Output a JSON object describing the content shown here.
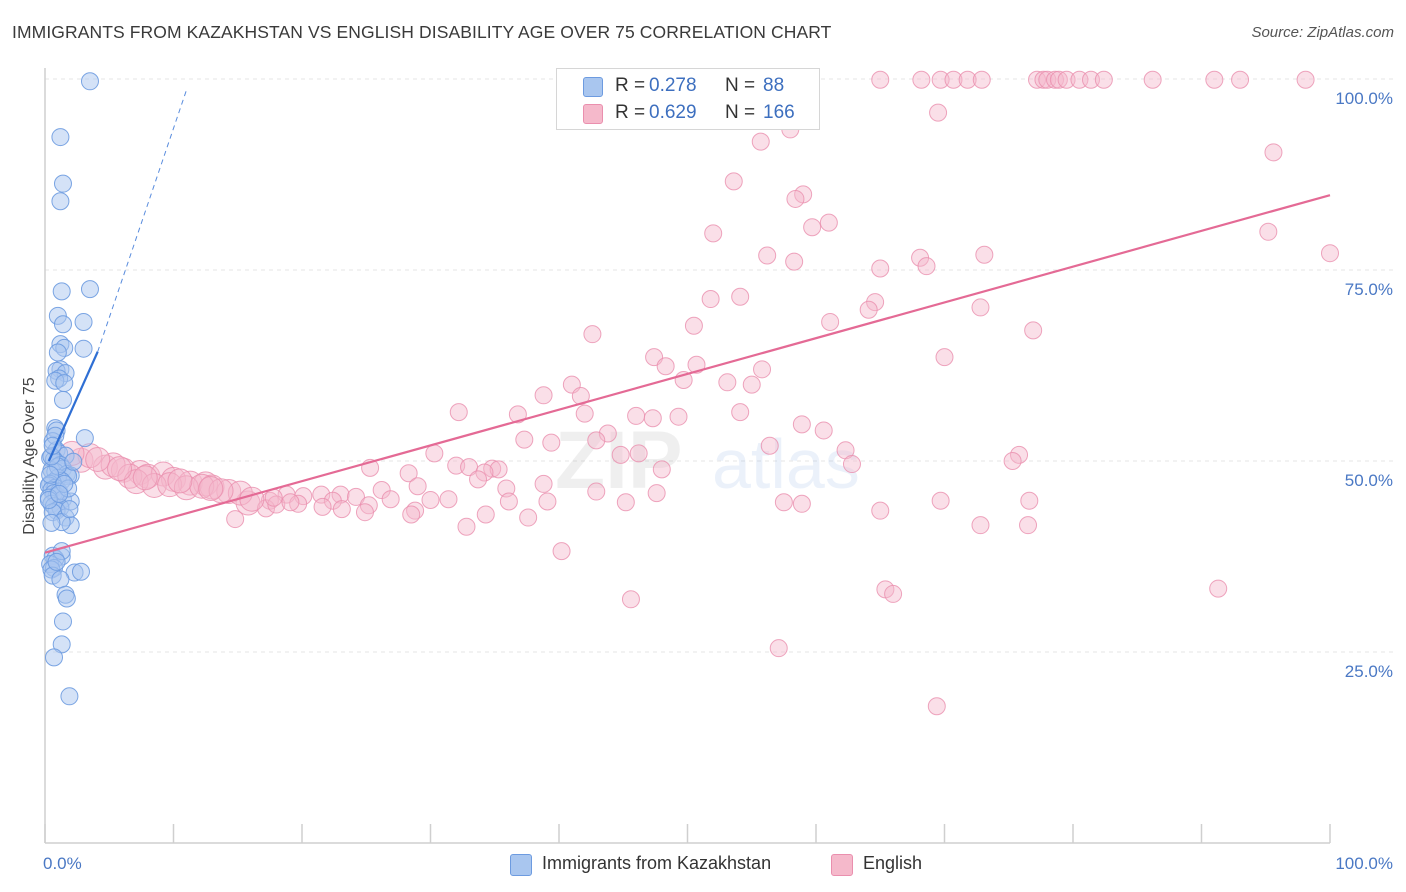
{
  "header": {
    "title": "IMMIGRANTS FROM KAZAKHSTAN VS ENGLISH DISABILITY AGE OVER 75 CORRELATION CHART",
    "source": "Source: ZipAtlas.com"
  },
  "watermark": {
    "text_zip": "ZIP",
    "text_atlas": "atlas"
  },
  "legend_top": {
    "rows": [
      {
        "r_label": "R =",
        "r_value": "0.278",
        "n_label": "N =",
        "n_value": "88"
      },
      {
        "r_label": "R =",
        "r_value": "0.629",
        "n_label": "N =",
        "n_value": "166"
      }
    ]
  },
  "legend_bottom": {
    "items": [
      {
        "label": "Immigrants from Kazakhstan"
      },
      {
        "label": "English"
      }
    ]
  },
  "colors": {
    "blue_fill": "#a9c6ef",
    "blue_stroke": "#6d9be0",
    "blue_line": "#2f6fd4",
    "pink_fill": "#f5b9cb",
    "pink_stroke": "#ea8fae",
    "pink_line": "#e46a95",
    "grid": "#e6e6e6",
    "axis_text": "#4a78c4"
  },
  "chart_data": {
    "type": "scatter",
    "title": "IMMIGRANTS FROM KAZAKHSTAN VS ENGLISH DISABILITY AGE OVER 75 CORRELATION CHART",
    "xlabel": "",
    "ylabel": "Disability Age Over 75",
    "xlim": [
      0,
      100
    ],
    "ylim": [
      0,
      100
    ],
    "x_ticks": [
      "0.0%",
      "100.0%"
    ],
    "y_ticks": [
      "25.0%",
      "50.0%",
      "75.0%",
      "100.0%"
    ],
    "y_tick_values": [
      25,
      50,
      75,
      100
    ],
    "grid": true,
    "legend_position": "top-center",
    "series": [
      {
        "name": "Immigrants from Kazakhstan",
        "r": 0.278,
        "n": 88,
        "trend": {
          "x": [
            0.3,
            4.1
          ],
          "y": [
            50.0,
            64.3
          ]
        },
        "trend_extension": {
          "x": [
            4.1,
            11.0
          ],
          "y": [
            64.3,
            98.5
          ]
        },
        "points": [
          [
            3.5,
            99.7
          ],
          [
            1.2,
            92.4
          ],
          [
            1.4,
            86.3
          ],
          [
            1.2,
            84.0
          ],
          [
            3.5,
            72.5
          ],
          [
            1.3,
            72.2
          ],
          [
            1.0,
            69.0
          ],
          [
            3.0,
            68.2
          ],
          [
            1.4,
            67.9
          ],
          [
            1.2,
            65.3
          ],
          [
            1.5,
            64.8
          ],
          [
            3.0,
            64.7
          ],
          [
            1.0,
            64.2
          ],
          [
            1.2,
            62.0
          ],
          [
            0.9,
            61.8
          ],
          [
            1.6,
            61.5
          ],
          [
            1.1,
            60.8
          ],
          [
            0.8,
            60.5
          ],
          [
            1.5,
            60.2
          ],
          [
            1.4,
            58.0
          ],
          [
            0.8,
            54.3
          ],
          [
            0.9,
            54.0
          ],
          [
            3.1,
            53.0
          ],
          [
            0.6,
            52.6
          ],
          [
            0.9,
            51.4
          ],
          [
            1.1,
            51.0
          ],
          [
            1.6,
            50.7
          ],
          [
            0.4,
            50.4
          ],
          [
            0.7,
            50.2
          ],
          [
            0.9,
            49.8
          ],
          [
            1.2,
            49.5
          ],
          [
            1.4,
            49.0
          ],
          [
            0.5,
            48.8
          ],
          [
            0.8,
            48.6
          ],
          [
            1.7,
            48.3
          ],
          [
            2.0,
            48.1
          ],
          [
            1.8,
            48.0
          ],
          [
            1.0,
            47.8
          ],
          [
            1.3,
            47.4
          ],
          [
            0.6,
            47.2
          ],
          [
            0.4,
            47.0
          ],
          [
            0.3,
            46.8
          ],
          [
            0.8,
            46.5
          ],
          [
            0.5,
            46.2
          ],
          [
            1.1,
            46.0
          ],
          [
            0.7,
            45.8
          ],
          [
            0.9,
            45.4
          ],
          [
            0.3,
            45.2
          ],
          [
            1.4,
            45.0
          ],
          [
            2.0,
            44.7
          ],
          [
            0.5,
            44.4
          ],
          [
            0.7,
            44.1
          ],
          [
            1.2,
            43.9
          ],
          [
            0.9,
            43.5
          ],
          [
            0.6,
            43.3
          ],
          [
            1.6,
            42.6
          ],
          [
            2.0,
            41.6
          ],
          [
            1.3,
            42.0
          ],
          [
            0.6,
            37.6
          ],
          [
            1.3,
            37.5
          ],
          [
            0.8,
            37.2
          ],
          [
            0.4,
            36.5
          ],
          [
            0.7,
            36.0
          ],
          [
            0.5,
            35.8
          ],
          [
            2.3,
            35.4
          ],
          [
            0.6,
            35.0
          ],
          [
            2.8,
            35.5
          ],
          [
            1.2,
            34.5
          ],
          [
            1.6,
            32.5
          ],
          [
            1.7,
            32.0
          ],
          [
            1.4,
            29.0
          ],
          [
            1.3,
            26.0
          ],
          [
            0.7,
            24.3
          ],
          [
            1.9,
            19.2
          ],
          [
            1.0,
            49.3
          ],
          [
            0.5,
            50.6
          ],
          [
            1.8,
            46.4
          ],
          [
            0.4,
            48.2
          ],
          [
            1.5,
            47.0
          ],
          [
            0.3,
            44.9
          ],
          [
            2.2,
            49.9
          ],
          [
            0.8,
            53.3
          ],
          [
            1.1,
            45.7
          ],
          [
            0.6,
            52.0
          ],
          [
            1.9,
            43.7
          ],
          [
            0.5,
            41.9
          ],
          [
            1.3,
            38.2
          ],
          [
            0.9,
            36.8
          ]
        ]
      },
      {
        "name": "English",
        "r": 0.629,
        "n": 166,
        "trend": {
          "x": [
            0,
            100
          ],
          "y": [
            38.0,
            84.8
          ]
        },
        "points": [
          [
            65.0,
            99.9
          ],
          [
            68.2,
            99.9
          ],
          [
            69.7,
            99.9
          ],
          [
            70.7,
            99.9
          ],
          [
            71.8,
            99.9
          ],
          [
            72.9,
            99.9
          ],
          [
            77.2,
            99.9
          ],
          [
            77.7,
            99.9
          ],
          [
            78.0,
            99.9
          ],
          [
            78.6,
            99.9
          ],
          [
            78.9,
            99.9
          ],
          [
            79.5,
            99.9
          ],
          [
            80.5,
            99.9
          ],
          [
            81.4,
            99.9
          ],
          [
            82.4,
            99.9
          ],
          [
            86.2,
            99.9
          ],
          [
            91.0,
            99.9
          ],
          [
            93.0,
            99.9
          ],
          [
            98.1,
            99.9
          ],
          [
            69.5,
            95.6
          ],
          [
            58.0,
            93.4
          ],
          [
            55.7,
            91.8
          ],
          [
            95.6,
            90.4
          ],
          [
            53.6,
            86.6
          ],
          [
            59.0,
            84.9
          ],
          [
            58.4,
            84.3
          ],
          [
            61.0,
            81.2
          ],
          [
            59.7,
            80.6
          ],
          [
            52.0,
            79.8
          ],
          [
            95.2,
            80.0
          ],
          [
            100.0,
            77.2
          ],
          [
            73.1,
            77.0
          ],
          [
            56.2,
            76.9
          ],
          [
            68.1,
            76.6
          ],
          [
            58.3,
            76.1
          ],
          [
            68.6,
            75.5
          ],
          [
            65.0,
            75.2
          ],
          [
            54.1,
            71.5
          ],
          [
            51.8,
            71.2
          ],
          [
            64.6,
            70.8
          ],
          [
            64.1,
            69.8
          ],
          [
            72.8,
            70.1
          ],
          [
            50.5,
            67.7
          ],
          [
            61.1,
            68.2
          ],
          [
            76.9,
            67.1
          ],
          [
            42.6,
            66.6
          ],
          [
            47.4,
            63.6
          ],
          [
            70.0,
            63.6
          ],
          [
            50.7,
            62.6
          ],
          [
            48.3,
            62.4
          ],
          [
            55.8,
            62.0
          ],
          [
            49.7,
            60.6
          ],
          [
            53.1,
            60.3
          ],
          [
            55.0,
            60.0
          ],
          [
            41.0,
            60.0
          ],
          [
            38.8,
            58.6
          ],
          [
            41.7,
            58.5
          ],
          [
            42.0,
            56.2
          ],
          [
            32.2,
            56.4
          ],
          [
            36.8,
            56.1
          ],
          [
            46.0,
            55.9
          ],
          [
            49.3,
            55.8
          ],
          [
            54.1,
            56.4
          ],
          [
            47.3,
            55.6
          ],
          [
            58.9,
            54.8
          ],
          [
            60.6,
            54.0
          ],
          [
            43.8,
            53.6
          ],
          [
            37.3,
            52.8
          ],
          [
            42.9,
            52.7
          ],
          [
            39.4,
            52.4
          ],
          [
            56.4,
            52.0
          ],
          [
            62.3,
            51.4
          ],
          [
            46.2,
            51.0
          ],
          [
            30.3,
            51.0
          ],
          [
            44.8,
            50.8
          ],
          [
            75.8,
            50.8
          ],
          [
            75.3,
            50.0
          ],
          [
            62.8,
            49.6
          ],
          [
            32.0,
            49.4
          ],
          [
            33.0,
            49.2
          ],
          [
            25.3,
            49.1
          ],
          [
            34.8,
            49.0
          ],
          [
            35.3,
            48.9
          ],
          [
            48.0,
            48.9
          ],
          [
            34.2,
            48.5
          ],
          [
            28.3,
            48.4
          ],
          [
            33.7,
            47.6
          ],
          [
            38.8,
            47.0
          ],
          [
            29.0,
            46.7
          ],
          [
            35.9,
            46.4
          ],
          [
            42.9,
            46.0
          ],
          [
            26.2,
            46.2
          ],
          [
            47.6,
            45.8
          ],
          [
            21.5,
            45.6
          ],
          [
            23.0,
            45.6
          ],
          [
            18.8,
            45.6
          ],
          [
            20.1,
            45.4
          ],
          [
            24.2,
            45.3
          ],
          [
            26.9,
            45.0
          ],
          [
            31.4,
            45.0
          ],
          [
            30.0,
            44.9
          ],
          [
            17.5,
            44.8
          ],
          [
            22.4,
            44.8
          ],
          [
            36.1,
            44.7
          ],
          [
            39.1,
            44.7
          ],
          [
            45.2,
            44.6
          ],
          [
            57.5,
            44.6
          ],
          [
            69.7,
            44.8
          ],
          [
            76.6,
            44.8
          ],
          [
            15.8,
            44.5
          ],
          [
            19.7,
            44.4
          ],
          [
            25.2,
            44.2
          ],
          [
            21.6,
            44.0
          ],
          [
            17.2,
            43.8
          ],
          [
            23.1,
            43.7
          ],
          [
            28.8,
            43.5
          ],
          [
            24.9,
            43.3
          ],
          [
            28.5,
            43.0
          ],
          [
            34.3,
            43.0
          ],
          [
            37.6,
            42.6
          ],
          [
            14.8,
            42.4
          ],
          [
            32.8,
            41.4
          ],
          [
            72.8,
            41.6
          ],
          [
            76.5,
            41.6
          ],
          [
            58.9,
            44.4
          ],
          [
            65.0,
            43.5
          ],
          [
            40.2,
            38.2
          ],
          [
            91.3,
            33.3
          ],
          [
            65.4,
            33.2
          ],
          [
            66.0,
            32.6
          ],
          [
            45.6,
            31.9
          ],
          [
            57.1,
            25.5
          ],
          [
            69.4,
            17.9
          ],
          [
            2.8,
            50.1
          ],
          [
            4.7,
            49.2
          ],
          [
            6.1,
            48.8
          ],
          [
            7.4,
            48.5
          ],
          [
            8.0,
            48.0
          ],
          [
            9.2,
            48.3
          ],
          [
            10.0,
            47.6
          ],
          [
            11.3,
            47.1
          ],
          [
            12.5,
            47.0
          ],
          [
            13.0,
            46.6
          ],
          [
            14.3,
            46.0
          ],
          [
            15.2,
            45.8
          ],
          [
            3.5,
            50.7
          ],
          [
            5.3,
            49.5
          ],
          [
            6.6,
            48.0
          ],
          [
            7.1,
            47.3
          ],
          [
            8.5,
            46.8
          ],
          [
            9.7,
            46.9
          ],
          [
            11.0,
            46.5
          ],
          [
            12.2,
            46.7
          ],
          [
            13.7,
            46.1
          ],
          [
            16.1,
            45.0
          ],
          [
            18.0,
            44.3
          ],
          [
            19.1,
            44.6
          ],
          [
            4.1,
            50.2
          ],
          [
            5.8,
            49.0
          ],
          [
            7.8,
            47.8
          ],
          [
            10.5,
            47.4
          ],
          [
            12.9,
            46.4
          ],
          [
            2.1,
            51.0
          ],
          [
            17.8,
            45.2
          ]
        ]
      }
    ]
  }
}
